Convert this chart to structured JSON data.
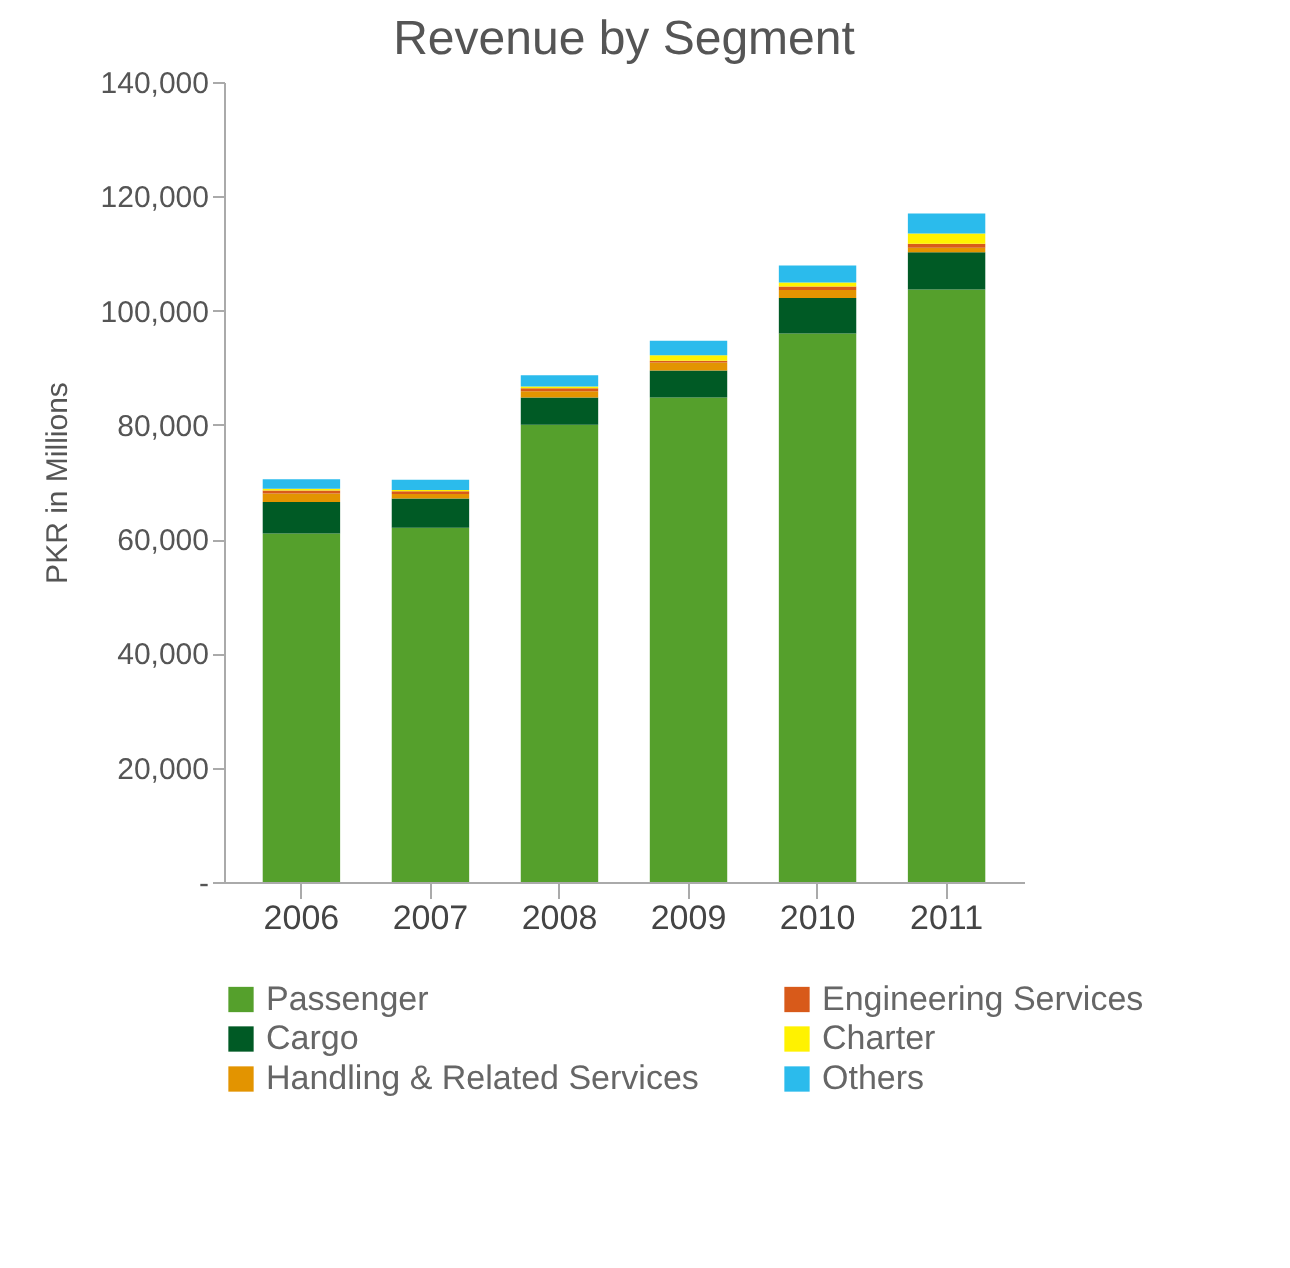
{
  "chart_data": {
    "type": "bar",
    "title": "Revenue by Segment",
    "ylabel": "PKR in Millions",
    "categories": [
      "2006",
      "2007",
      "2008",
      "2009",
      "2010",
      "2011"
    ],
    "stacked": true,
    "series": [
      {
        "name": "Passenger",
        "color": "#55a02c",
        "values": [
          61000,
          62000,
          80000,
          84800,
          96000,
          103700
        ]
      },
      {
        "name": "Cargo",
        "color": "#005a25",
        "values": [
          5500,
          5100,
          4800,
          4700,
          6200,
          6500
        ]
      },
      {
        "name": "Handling & Related Services",
        "color": "#e39400",
        "values": [
          1500,
          800,
          1100,
          1400,
          1400,
          800
        ]
      },
      {
        "name": "Engineering Services",
        "color": "#d85a1a",
        "values": [
          500,
          500,
          500,
          300,
          600,
          700
        ]
      },
      {
        "name": "Charter",
        "color": "#fff200",
        "values": [
          300,
          200,
          300,
          1000,
          700,
          1800
        ]
      },
      {
        "name": "Others",
        "color": "#2bbbec",
        "values": [
          1700,
          1800,
          2000,
          2500,
          3000,
          3500
        ]
      }
    ],
    "ylim": [
      0,
      140000
    ],
    "yticks": [
      {
        "value": 0,
        "label": "-"
      },
      {
        "value": 20000,
        "label": "20,000"
      },
      {
        "value": 40000,
        "label": "40,000"
      },
      {
        "value": 60000,
        "label": "60,000"
      },
      {
        "value": 80000,
        "label": "80,000"
      },
      {
        "value": 100000,
        "label": "100,000"
      },
      {
        "value": 120000,
        "label": "120,000"
      },
      {
        "value": 140000,
        "label": "140,000"
      }
    ],
    "grid": false,
    "legend": "bottom"
  }
}
